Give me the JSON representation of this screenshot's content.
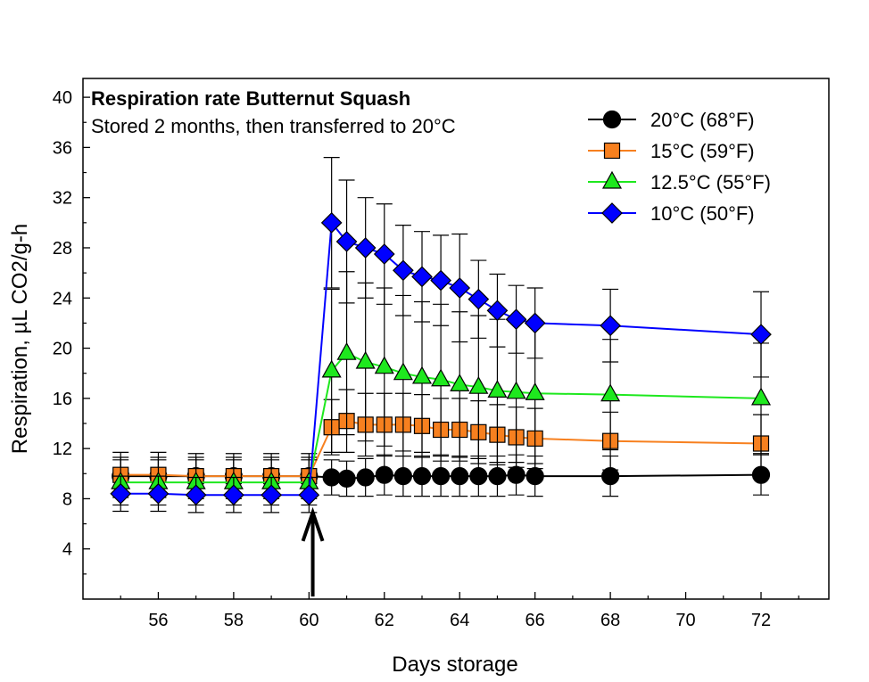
{
  "chart_data": {
    "type": "line",
    "title": "Respiration rate Butternut Squash",
    "subtitle": "Stored 2 months, then transferred to 20°C",
    "xlabel": "Days storage",
    "ylabel": "Respiration, µL CO2/g-h",
    "xlim": [
      54,
      73.8
    ],
    "ylim": [
      0,
      41.5
    ],
    "xticks": [
      56,
      58,
      60,
      62,
      64,
      66,
      68,
      70,
      72
    ],
    "yticks": [
      4,
      8,
      12,
      16,
      20,
      24,
      28,
      32,
      36,
      40
    ],
    "grid": false,
    "legend_position": "top-right",
    "annotation": {
      "type": "arrow",
      "x": 60.1,
      "y_from": 0.2,
      "y_to": 6.9
    },
    "series": [
      {
        "name": "20°C  (68°F)",
        "color": "#000000",
        "marker": "circle",
        "points": [
          {
            "x": 55,
            "y": 9.8,
            "err": 1.5
          },
          {
            "x": 56,
            "y": 9.8,
            "err": 1.5
          },
          {
            "x": 57,
            "y": 9.8,
            "err": 1.5
          },
          {
            "x": 58,
            "y": 9.8,
            "err": 1.5
          },
          {
            "x": 59,
            "y": 9.8,
            "err": 1.5
          },
          {
            "x": 60,
            "y": 9.8,
            "err": 1.5
          },
          {
            "x": 60.6,
            "y": 9.7,
            "err": 1.4
          },
          {
            "x": 61,
            "y": 9.6,
            "err": 1.4
          },
          {
            "x": 61.5,
            "y": 9.7,
            "err": 1.5
          },
          {
            "x": 62,
            "y": 9.9,
            "err": 1.6
          },
          {
            "x": 62.5,
            "y": 9.8,
            "err": 1.6
          },
          {
            "x": 63,
            "y": 9.8,
            "err": 1.6
          },
          {
            "x": 63.5,
            "y": 9.8,
            "err": 1.6
          },
          {
            "x": 64,
            "y": 9.8,
            "err": 1.6
          },
          {
            "x": 64.5,
            "y": 9.8,
            "err": 1.6
          },
          {
            "x": 65,
            "y": 9.8,
            "err": 1.6
          },
          {
            "x": 65.5,
            "y": 9.9,
            "err": 1.6
          },
          {
            "x": 66,
            "y": 9.8,
            "err": 1.6
          },
          {
            "x": 68,
            "y": 9.8,
            "err": 1.6
          },
          {
            "x": 72,
            "y": 9.9,
            "err": 1.6
          }
        ]
      },
      {
        "name": "15°C  (59°F)",
        "color": "#f7801f",
        "marker": "square",
        "points": [
          {
            "x": 55,
            "y": 9.9,
            "err": 1.8
          },
          {
            "x": 56,
            "y": 9.9,
            "err": 1.8
          },
          {
            "x": 57,
            "y": 9.8,
            "err": 1.8
          },
          {
            "x": 58,
            "y": 9.8,
            "err": 1.8
          },
          {
            "x": 59,
            "y": 9.8,
            "err": 1.8
          },
          {
            "x": 60,
            "y": 9.8,
            "err": 1.8
          },
          {
            "x": 60.6,
            "y": 13.7,
            "err": 2.2
          },
          {
            "x": 61,
            "y": 14.2,
            "err": 2.5
          },
          {
            "x": 61.5,
            "y": 13.9,
            "err": 2.5
          },
          {
            "x": 62,
            "y": 13.9,
            "err": 2.5
          },
          {
            "x": 62.5,
            "y": 13.9,
            "err": 2.5
          },
          {
            "x": 63,
            "y": 13.8,
            "err": 2.5
          },
          {
            "x": 63.5,
            "y": 13.5,
            "err": 2.5
          },
          {
            "x": 64,
            "y": 13.5,
            "err": 2.5
          },
          {
            "x": 64.5,
            "y": 13.3,
            "err": 2.5
          },
          {
            "x": 65,
            "y": 13.1,
            "err": 2.4
          },
          {
            "x": 65.5,
            "y": 12.9,
            "err": 2.4
          },
          {
            "x": 66,
            "y": 12.8,
            "err": 2.4
          },
          {
            "x": 68,
            "y": 12.6,
            "err": 2.3
          },
          {
            "x": 72,
            "y": 12.4,
            "err": 2.3
          }
        ]
      },
      {
        "name": "12.5°C  (55°F)",
        "color": "#1ee81e",
        "marker": "triangle",
        "points": [
          {
            "x": 55,
            "y": 9.3,
            "err": 1.8
          },
          {
            "x": 56,
            "y": 9.3,
            "err": 1.8
          },
          {
            "x": 57,
            "y": 9.3,
            "err": 1.8
          },
          {
            "x": 58,
            "y": 9.3,
            "err": 1.8
          },
          {
            "x": 59,
            "y": 9.3,
            "err": 1.8
          },
          {
            "x": 60,
            "y": 9.3,
            "err": 1.8
          },
          {
            "x": 60.6,
            "y": 18.2,
            "err": 6.5
          },
          {
            "x": 61,
            "y": 19.6,
            "err": 6.5
          },
          {
            "x": 61.5,
            "y": 18.9,
            "err": 6.3
          },
          {
            "x": 62,
            "y": 18.5,
            "err": 6.3
          },
          {
            "x": 62.5,
            "y": 18.0,
            "err": 6.2
          },
          {
            "x": 63,
            "y": 17.7,
            "err": 6.0
          },
          {
            "x": 63.5,
            "y": 17.5,
            "err": 6.0
          },
          {
            "x": 64,
            "y": 17.1,
            "err": 5.8
          },
          {
            "x": 64.5,
            "y": 16.9,
            "err": 5.7
          },
          {
            "x": 65,
            "y": 16.6,
            "err": 5.7
          },
          {
            "x": 65.5,
            "y": 16.5,
            "err": 5.6
          },
          {
            "x": 66,
            "y": 16.4,
            "err": 5.6
          },
          {
            "x": 68,
            "y": 16.3,
            "err": 4.4
          },
          {
            "x": 72,
            "y": 16.0,
            "err": 4.4
          }
        ]
      },
      {
        "name": "10°C  (50°F)",
        "color": "#0000ff",
        "marker": "diamond",
        "points": [
          {
            "x": 55,
            "y": 8.4,
            "err": 1.4
          },
          {
            "x": 56,
            "y": 8.4,
            "err": 1.4
          },
          {
            "x": 57,
            "y": 8.3,
            "err": 1.4
          },
          {
            "x": 58,
            "y": 8.3,
            "err": 1.4
          },
          {
            "x": 59,
            "y": 8.3,
            "err": 1.4
          },
          {
            "x": 60,
            "y": 8.3,
            "err": 1.4
          },
          {
            "x": 60.6,
            "y": 30.0,
            "err": 5.2
          },
          {
            "x": 61,
            "y": 28.5,
            "err": 4.9
          },
          {
            "x": 61.5,
            "y": 28.0,
            "err": 4.0
          },
          {
            "x": 62,
            "y": 27.5,
            "err": 4.0
          },
          {
            "x": 62.5,
            "y": 26.2,
            "err": 3.6
          },
          {
            "x": 63,
            "y": 25.7,
            "err": 3.6
          },
          {
            "x": 63.5,
            "y": 25.4,
            "err": 3.6
          },
          {
            "x": 64,
            "y": 24.8,
            "err": 4.3
          },
          {
            "x": 64.5,
            "y": 23.9,
            "err": 3.1
          },
          {
            "x": 65,
            "y": 23.0,
            "err": 2.9
          },
          {
            "x": 65.5,
            "y": 22.3,
            "err": 2.7
          },
          {
            "x": 66,
            "y": 22.0,
            "err": 2.8
          },
          {
            "x": 68,
            "y": 21.8,
            "err": 2.9
          },
          {
            "x": 72,
            "y": 21.1,
            "err": 3.4
          }
        ]
      }
    ]
  }
}
